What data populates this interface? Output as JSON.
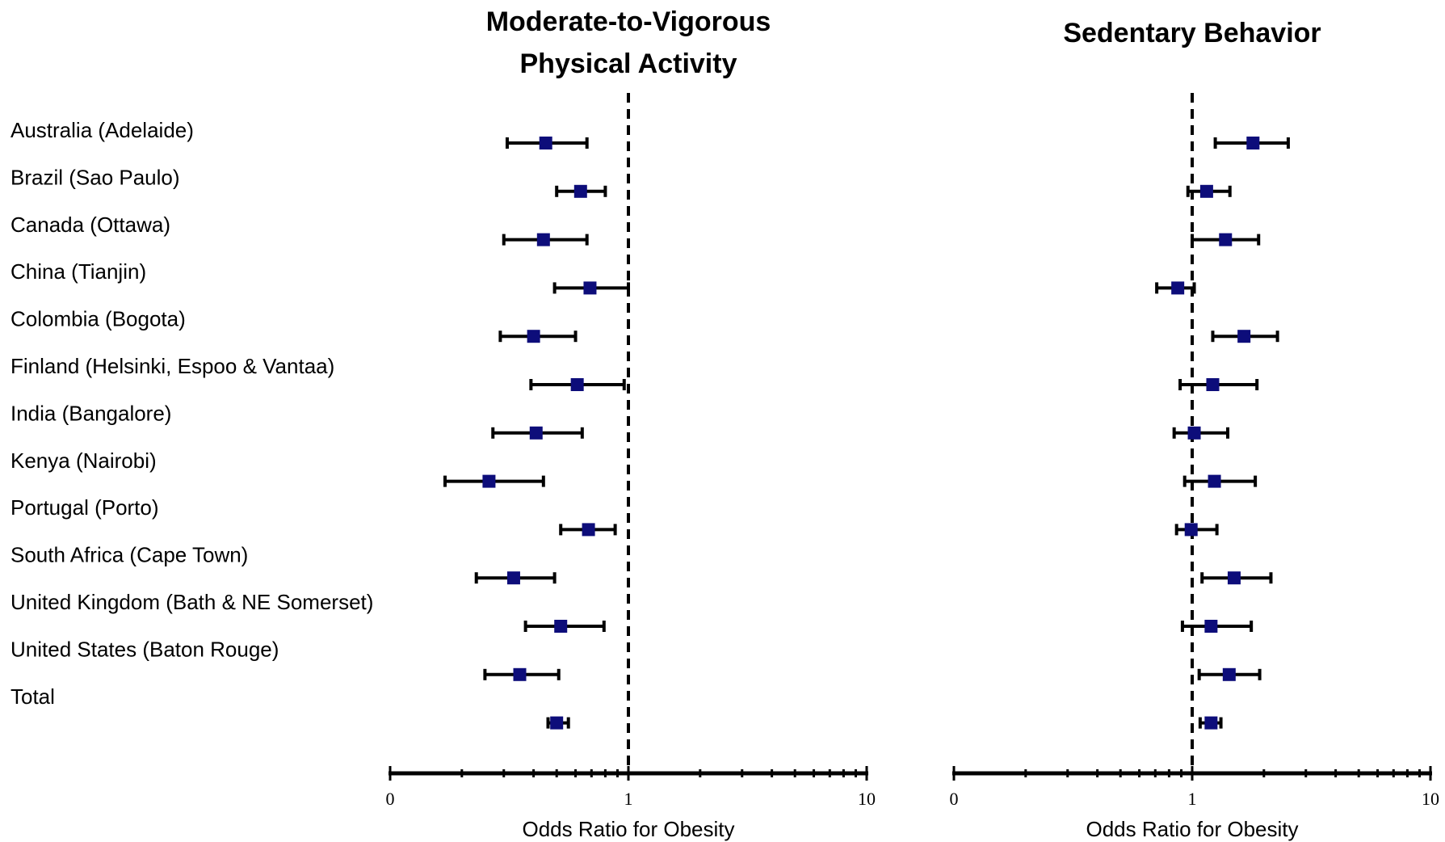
{
  "chart_data": {
    "type": "forest",
    "countries": [
      "Australia (Adelaide)",
      "Brazil (Sao Paulo)",
      "Canada (Ottawa)",
      "China (Tianjin)",
      "Colombia (Bogota)",
      "Finland (Helsinki, Espoo & Vantaa)",
      "India (Bangalore)",
      "Kenya (Nairobi)",
      "Portugal (Porto)",
      "South Africa (Cape Town)",
      "United Kingdom (Bath & NE Somerset)",
      "United States (Baton Rouge)",
      "Total"
    ],
    "panels": [
      {
        "title_lines": [
          "Moderate-to-Vigorous",
          "Physical Activity"
        ],
        "xlabel": "Odds Ratio for Obesity",
        "xscale": "log",
        "xlim": [
          0.1,
          10
        ],
        "tick_labels": [
          "0",
          "1",
          "10"
        ],
        "tick_values": [
          0.1,
          1,
          10
        ],
        "reference_line": 1,
        "or": [
          0.45,
          0.63,
          0.44,
          0.69,
          0.4,
          0.61,
          0.41,
          0.26,
          0.68,
          0.33,
          0.52,
          0.35,
          0.5
        ],
        "lower": [
          0.31,
          0.5,
          0.3,
          0.49,
          0.29,
          0.39,
          0.27,
          0.17,
          0.52,
          0.23,
          0.37,
          0.25,
          0.46
        ],
        "upper": [
          0.67,
          0.8,
          0.67,
          1.0,
          0.6,
          0.96,
          0.64,
          0.44,
          0.88,
          0.49,
          0.79,
          0.51,
          0.56
        ]
      },
      {
        "title_lines": [
          "Sedentary Behavior"
        ],
        "xlabel": "Odds Ratio for Obesity",
        "xscale": "log",
        "xlim": [
          0.1,
          10
        ],
        "tick_labels": [
          "0",
          "1",
          "10"
        ],
        "tick_values": [
          0.1,
          1,
          10
        ],
        "reference_line": 1,
        "or": [
          1.8,
          1.15,
          1.38,
          0.87,
          1.65,
          1.22,
          1.02,
          1.24,
          0.99,
          1.5,
          1.2,
          1.43,
          1.2
        ],
        "lower": [
          1.25,
          0.96,
          1.0,
          0.71,
          1.22,
          0.89,
          0.84,
          0.93,
          0.86,
          1.1,
          0.91,
          1.07,
          1.08
        ],
        "upper": [
          2.53,
          1.44,
          1.9,
          1.02,
          2.28,
          1.87,
          1.41,
          1.84,
          1.27,
          2.14,
          1.77,
          1.92,
          1.32
        ]
      }
    ],
    "colors": {
      "marker": "#0d0d7a",
      "line": "#000000"
    }
  }
}
